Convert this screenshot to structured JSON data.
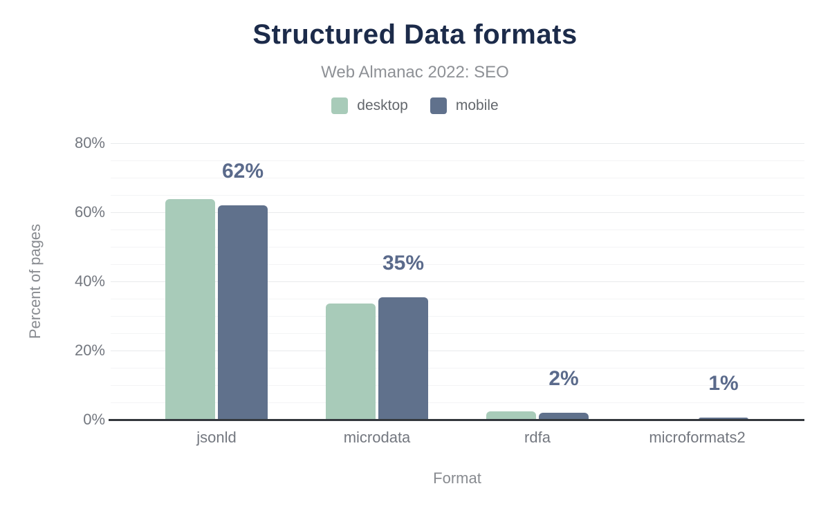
{
  "header": {
    "title": "Structured Data formats",
    "subtitle": "Web Almanac 2022: SEO"
  },
  "legend": [
    {
      "label": "desktop",
      "color": "#a8cbb9"
    },
    {
      "label": "mobile",
      "color": "#60718c"
    }
  ],
  "chart_data": {
    "type": "bar",
    "title": "Structured Data formats",
    "subtitle": "Web Almanac 2022: SEO",
    "categories": [
      "jsonld",
      "microdata",
      "rdfa",
      "microformats2"
    ],
    "series": [
      {
        "name": "desktop",
        "color": "#a8cbb9",
        "values": [
          63.7,
          33.5,
          2.3,
          0.1
        ]
      },
      {
        "name": "mobile",
        "color": "#60718c",
        "values": [
          61.9,
          35.4,
          2.0,
          0.6
        ]
      }
    ],
    "bar_labels": {
      "series": "mobile",
      "values": [
        "62%",
        "35%",
        "2%",
        "1%"
      ]
    },
    "xlabel": "Format",
    "ylabel": "Percent of pages",
    "ylim": [
      0,
      80
    ],
    "yticks": [
      0,
      20,
      40,
      60,
      80
    ],
    "ytick_labels": [
      "0%",
      "20%",
      "40%",
      "60%",
      "80%"
    ],
    "minor_grid_step_percent": 5,
    "grid": true,
    "legend_position": "top",
    "value_label_color": "#5a6a8b",
    "axis_line_color": "#33373c"
  }
}
